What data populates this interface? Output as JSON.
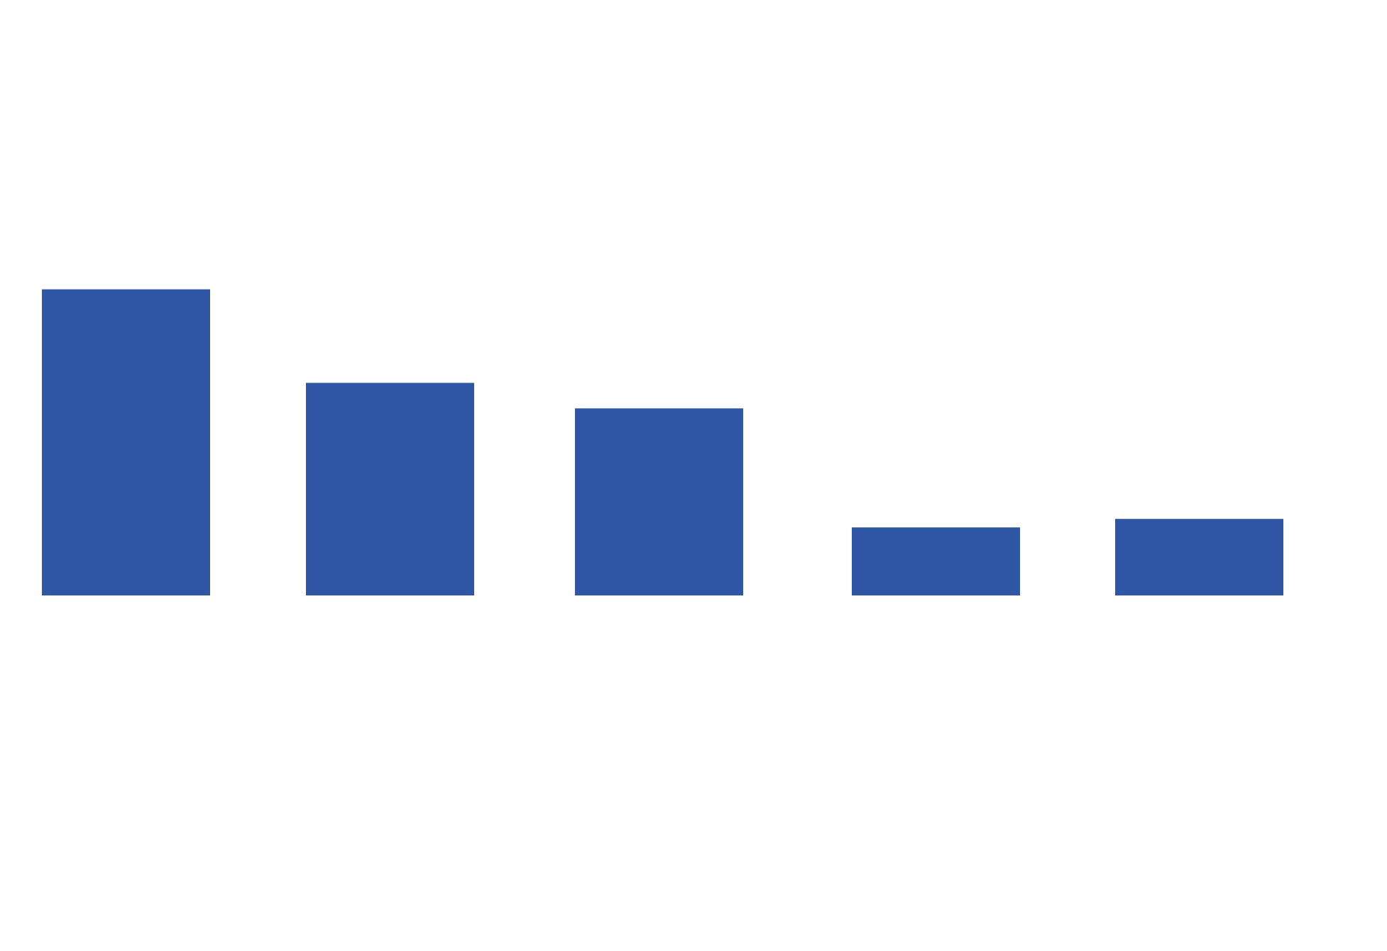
{
  "chart_data": {
    "type": "bar",
    "title": "",
    "xlabel": "",
    "ylabel": "",
    "categories": [
      "",
      "",
      "",
      "",
      ""
    ],
    "values": [
      36,
      25,
      22,
      8,
      9
    ],
    "ylim": [
      0,
      55
    ],
    "grid": false,
    "legend": "none",
    "colors": {
      "bar": "#2E56A5",
      "background": "#FFFFFF"
    }
  }
}
